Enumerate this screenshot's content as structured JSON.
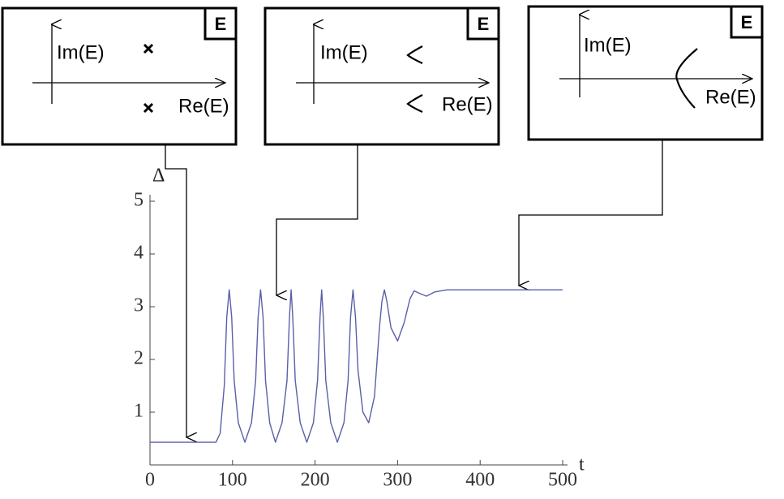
{
  "chart_data": {
    "type": "line",
    "x_label": "t",
    "y_label": "Δ",
    "x": [
      0,
      80,
      85,
      90,
      93,
      96,
      99,
      102,
      107,
      115,
      123,
      128,
      131,
      134,
      137,
      140,
      145,
      152,
      160,
      166,
      169,
      171,
      173,
      176,
      182,
      190,
      198,
      203,
      206,
      208,
      210,
      213,
      219,
      227,
      235,
      240,
      243,
      246,
      249,
      252,
      258,
      265,
      272,
      278,
      281,
      284,
      287,
      292,
      300,
      308,
      315,
      320,
      327,
      335,
      345,
      360,
      500
    ],
    "series": [
      {
        "color": "#5a5fa8",
        "values": [
          0.43,
          0.43,
          0.6,
          1.5,
          2.8,
          3.32,
          2.8,
          1.6,
          0.8,
          0.43,
          0.8,
          1.6,
          2.8,
          3.32,
          2.8,
          1.6,
          0.8,
          0.43,
          0.8,
          1.6,
          2.8,
          3.32,
          2.8,
          1.6,
          0.8,
          0.43,
          0.8,
          1.6,
          2.8,
          3.32,
          2.8,
          1.6,
          0.8,
          0.43,
          0.8,
          1.6,
          2.8,
          3.32,
          2.8,
          1.8,
          1.0,
          0.8,
          1.3,
          2.6,
          3.1,
          3.32,
          3.1,
          2.6,
          2.35,
          2.7,
          3.15,
          3.3,
          3.25,
          3.2,
          3.28,
          3.32,
          3.32
        ]
      }
    ],
    "xlim": [
      0,
      500
    ],
    "xticks": [
      0,
      100,
      200,
      300,
      400,
      500
    ],
    "ylim": [
      0,
      5
    ],
    "yticks": [
      1,
      2,
      3,
      4,
      5
    ]
  },
  "insets": [
    {
      "im_label": "Im(E)",
      "re_label": "Re(E)",
      "corner_label": "E"
    },
    {
      "im_label": "Im(E)",
      "re_label": "Re(E)",
      "corner_label": "E"
    },
    {
      "im_label": "Im(E)",
      "re_label": "Re(E)",
      "corner_label": "E"
    }
  ]
}
